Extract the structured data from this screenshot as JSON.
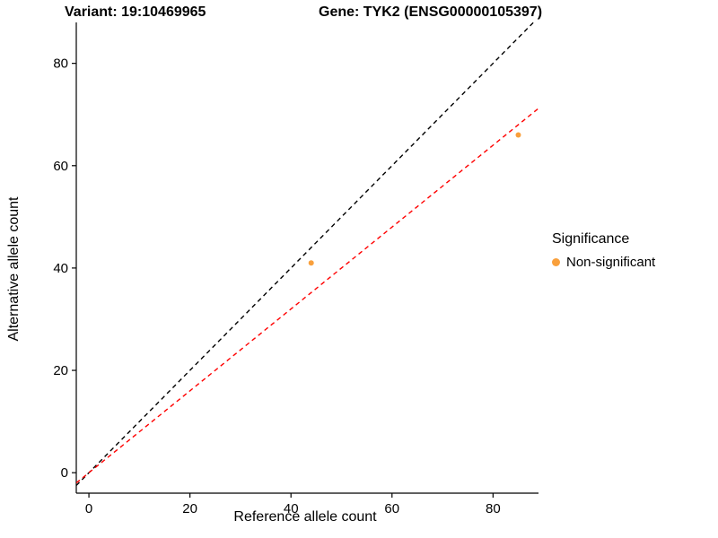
{
  "titles": {
    "variant": "Variant: 19:10469965",
    "gene": "Gene: TYK2 (ENSG00000105397)"
  },
  "axes": {
    "x_label": "Reference allele count",
    "y_label": "Alternative allele count"
  },
  "legend": {
    "title": "Significance",
    "items": [
      {
        "label": "Non-significant",
        "color": "#F9A03C"
      }
    ]
  },
  "chart_data": {
    "type": "scatter",
    "title_left": "Variant: 19:10469965",
    "title_right": "Gene: TYK2 (ENSG00000105397)",
    "xlabel": "Reference allele count",
    "ylabel": "Alternative allele count",
    "points": [
      {
        "x": 44,
        "y": 41,
        "series": "Non-significant"
      },
      {
        "x": 85,
        "y": 66,
        "series": "Non-significant"
      }
    ],
    "point_color": "#F9A03C",
    "point_radius": 3,
    "lines": [
      {
        "name": "identity",
        "slope": 1.0,
        "intercept": 0,
        "color": "#000000",
        "dashed": true
      },
      {
        "name": "fitted-ratio",
        "slope": 0.8,
        "intercept": 0,
        "color": "#FF0000",
        "dashed": true
      }
    ],
    "xlim": [
      -2.5,
      89
    ],
    "ylim": [
      -4,
      88
    ],
    "x_ticks": [
      0,
      20,
      40,
      60,
      80
    ],
    "y_ticks": [
      0,
      20,
      40,
      60,
      80
    ],
    "grid": false,
    "legend_position": "right",
    "legend_title": "Significance",
    "legend_entries": [
      "Non-significant"
    ]
  }
}
